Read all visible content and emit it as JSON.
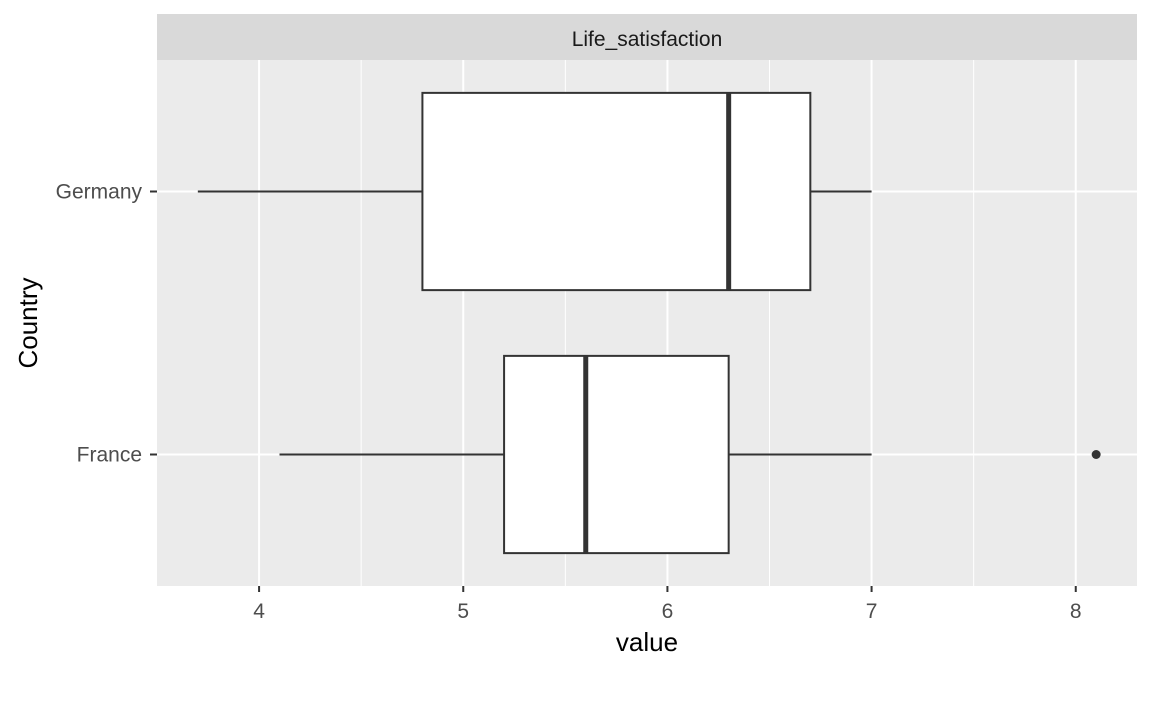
{
  "chart_data": {
    "type": "boxplot",
    "orientation": "horizontal",
    "facet_label": "Life_satisfaction",
    "xlabel": "value",
    "ylabel": "Country",
    "xlim": [
      3.5,
      8.3
    ],
    "x_ticks": [
      4,
      5,
      6,
      7,
      8
    ],
    "x_tick_labels": [
      "4",
      "5",
      "6",
      "7",
      "8"
    ],
    "categories": [
      "Germany",
      "France"
    ],
    "boxes": [
      {
        "category": "Germany",
        "whisker_low": 3.7,
        "q1": 4.8,
        "median": 6.3,
        "q3": 6.7,
        "whisker_high": 7.0,
        "outliers": []
      },
      {
        "category": "France",
        "whisker_low": 4.1,
        "q1": 5.2,
        "median": 5.6,
        "q3": 6.3,
        "whisker_high": 7.0,
        "outliers": [
          8.1
        ]
      }
    ],
    "grid": true,
    "colors": {
      "panel_background": "#ebebeb",
      "strip_background": "#d9d9d9",
      "grid": "#ffffff",
      "box_fill": "#ffffff",
      "box_line": "#333333"
    }
  }
}
